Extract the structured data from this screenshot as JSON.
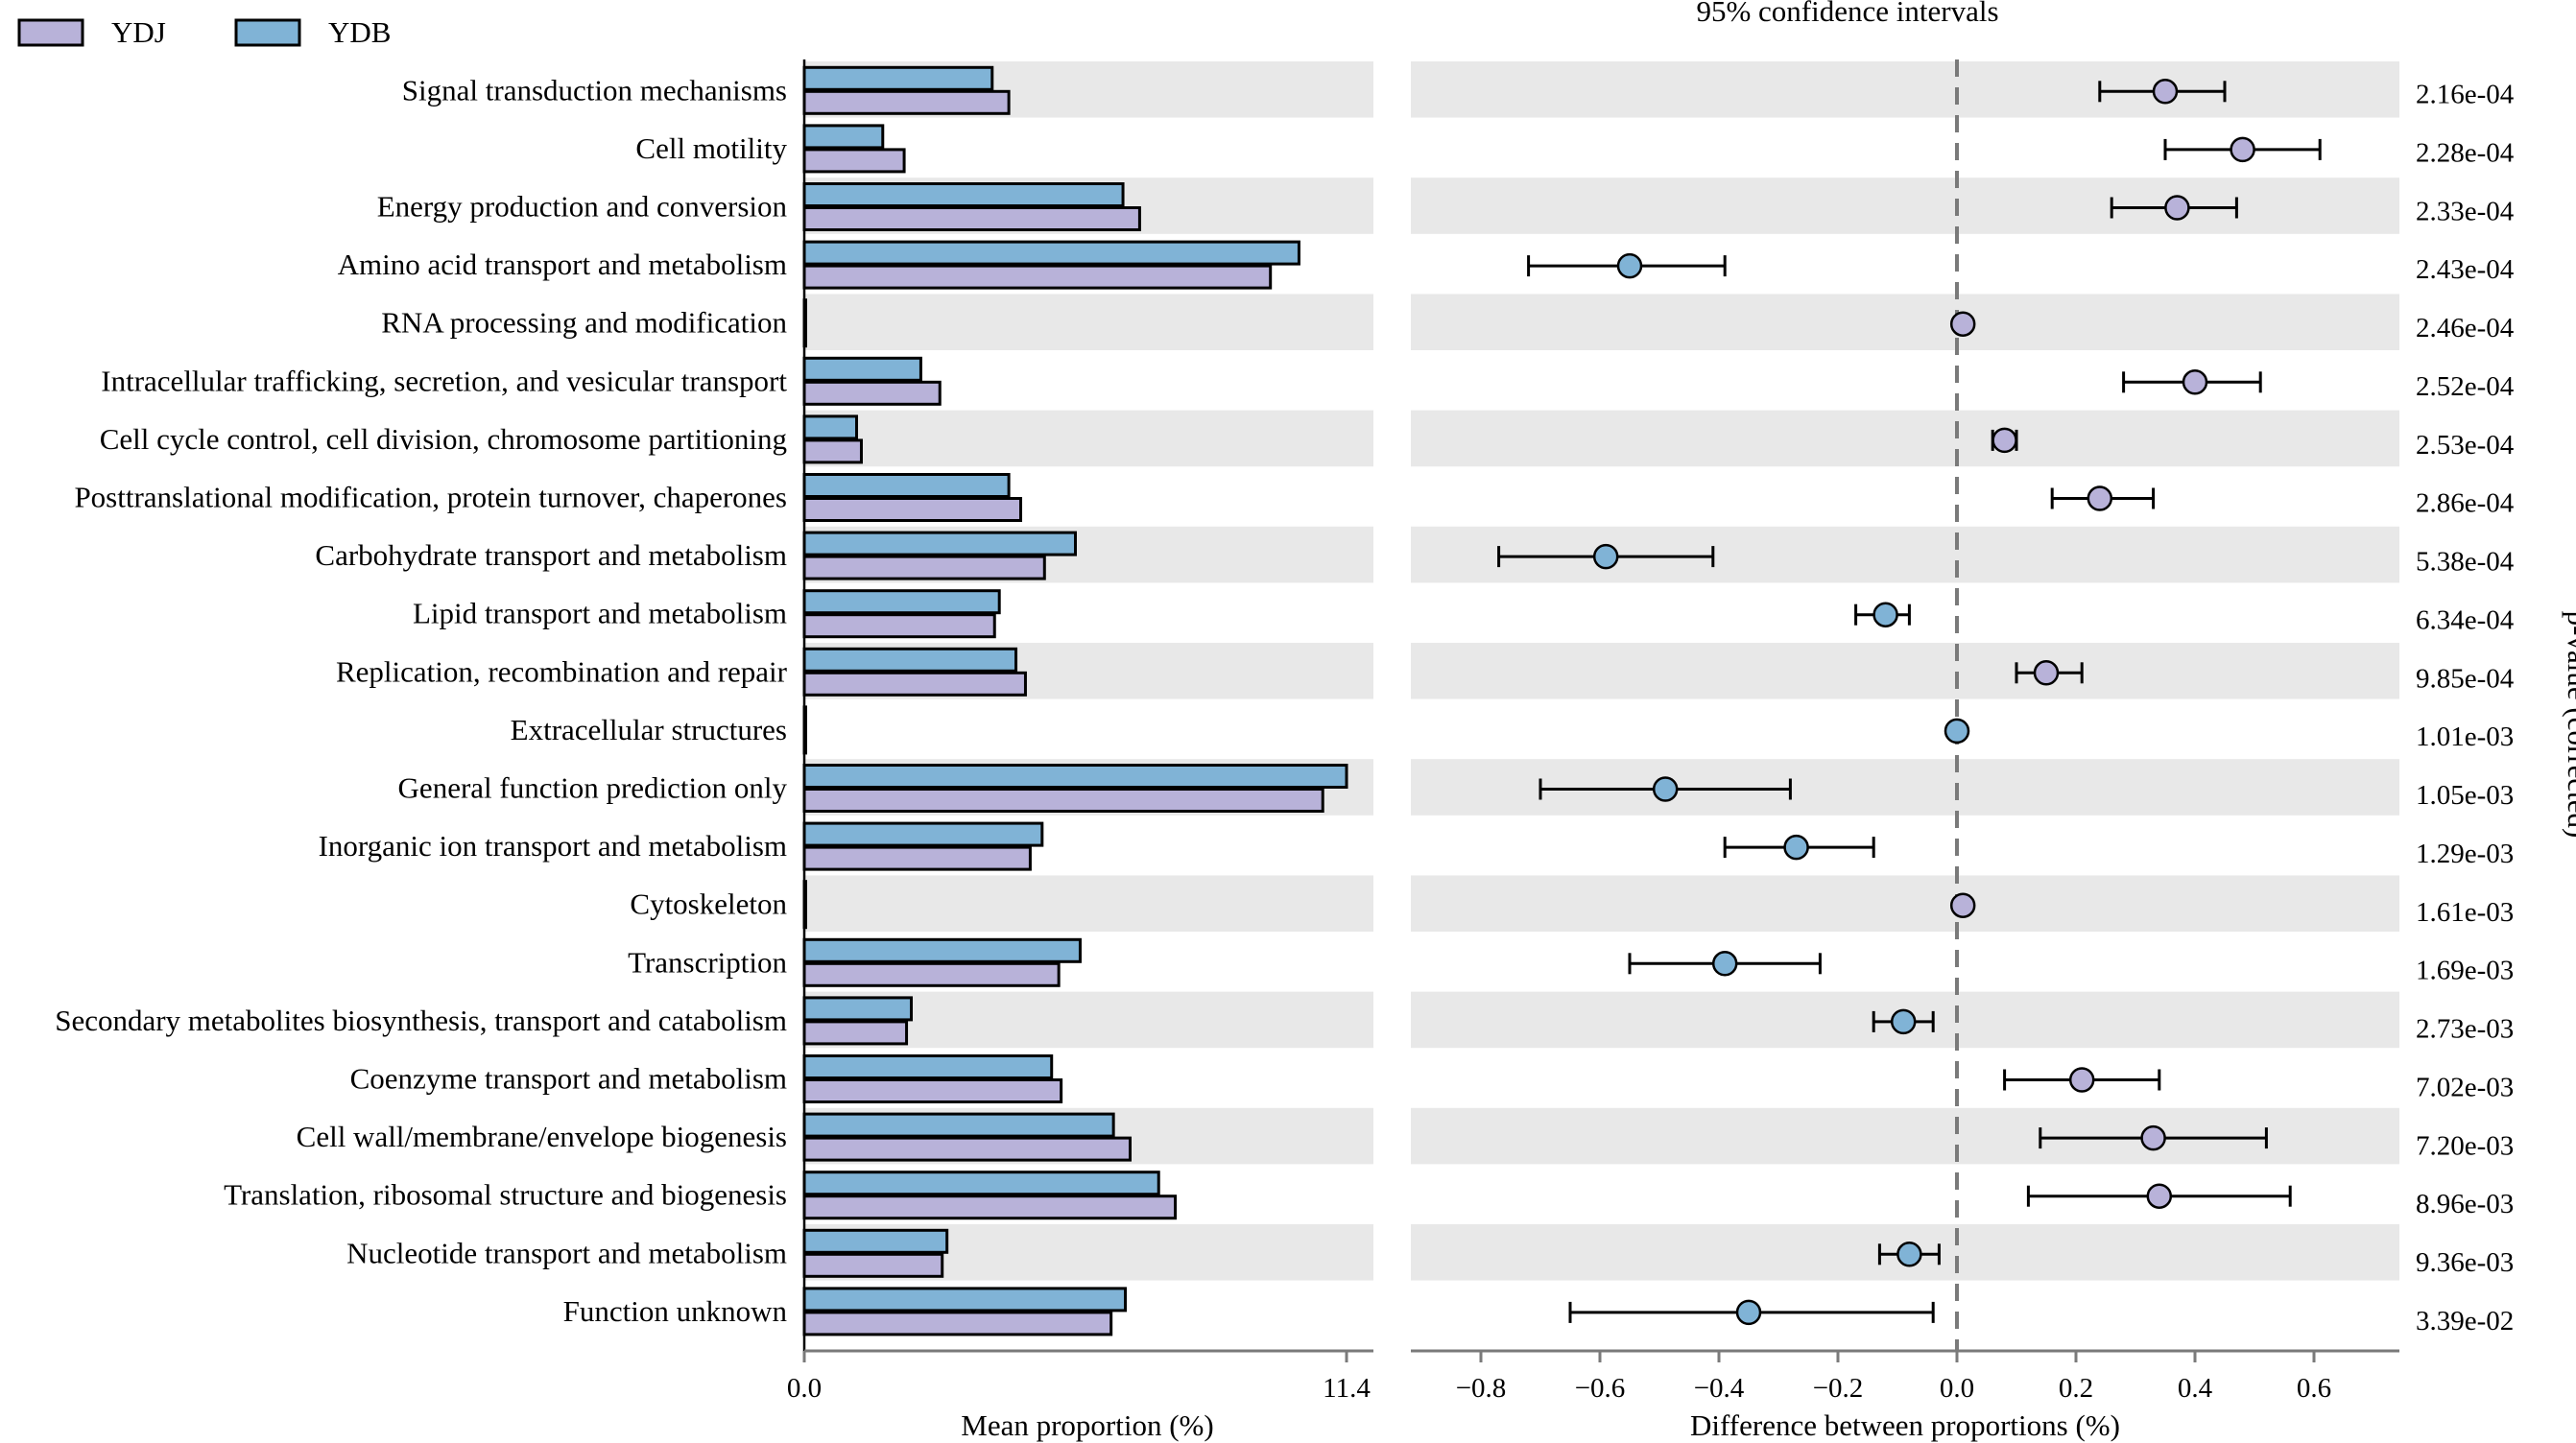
{
  "chart_data": {
    "type": "extended_error_bar",
    "legend": [
      {
        "name": "YDJ",
        "color": "#b8b2d9"
      },
      {
        "name": "YDB",
        "color": "#80b3d6"
      }
    ],
    "ci_title": "95% confidence intervals",
    "left_panel": {
      "xlabel": "Mean proportion (%)",
      "xlim": [
        0,
        11.4
      ],
      "ticks": [
        "0.0",
        "11.4"
      ]
    },
    "right_panel": {
      "xlabel": "Difference between proportions (%)",
      "xlim": [
        -0.9,
        0.7
      ],
      "ticks": [
        -0.8,
        -0.6,
        -0.4,
        -0.2,
        0.0,
        0.2,
        0.4,
        0.6
      ],
      "tick_labels": [
        "−0.8",
        "−0.6",
        "−0.4",
        "−0.2",
        "0.0",
        "0.2",
        "0.4",
        "0.6"
      ]
    },
    "pvalue_label": "p-value (corrected)",
    "categories": [
      {
        "name": "Signal transduction mechanisms",
        "ydb": 3.95,
        "ydj": 4.3,
        "diff": 0.35,
        "lo": 0.24,
        "hi": 0.45,
        "pvalue": "2.16e-04",
        "favors": "YDJ"
      },
      {
        "name": "Cell motility",
        "ydb": 1.65,
        "ydj": 2.1,
        "diff": 0.48,
        "lo": 0.35,
        "hi": 0.61,
        "pvalue": "2.28e-04",
        "favors": "YDJ"
      },
      {
        "name": "Energy production and conversion",
        "ydb": 6.7,
        "ydj": 7.05,
        "diff": 0.37,
        "lo": 0.26,
        "hi": 0.47,
        "pvalue": "2.33e-04",
        "favors": "YDJ"
      },
      {
        "name": "Amino acid transport and metabolism",
        "ydb": 10.4,
        "ydj": 9.8,
        "diff": -0.55,
        "lo": -0.72,
        "hi": -0.39,
        "pvalue": "2.43e-04",
        "favors": "YDB"
      },
      {
        "name": "RNA processing and modification",
        "ydb": 0.02,
        "ydj": 0.02,
        "diff": 0.01,
        "lo": 0.0,
        "hi": 0.02,
        "pvalue": "2.46e-04",
        "favors": "YDJ"
      },
      {
        "name": "Intracellular trafficking, secretion, and vesicular transport",
        "ydb": 2.45,
        "ydj": 2.85,
        "diff": 0.4,
        "lo": 0.28,
        "hi": 0.51,
        "pvalue": "2.52e-04",
        "favors": "YDJ"
      },
      {
        "name": "Cell cycle control, cell division, chromosome partitioning",
        "ydb": 1.1,
        "ydj": 1.2,
        "diff": 0.08,
        "lo": 0.06,
        "hi": 0.1,
        "pvalue": "2.53e-04",
        "favors": "YDJ"
      },
      {
        "name": "Posttranslational modification, protein turnover, chaperones",
        "ydb": 4.3,
        "ydj": 4.55,
        "diff": 0.24,
        "lo": 0.16,
        "hi": 0.33,
        "pvalue": "2.86e-04",
        "favors": "YDJ"
      },
      {
        "name": "Carbohydrate transport and metabolism",
        "ydb": 5.7,
        "ydj": 5.05,
        "diff": -0.59,
        "lo": -0.77,
        "hi": -0.41,
        "pvalue": "5.38e-04",
        "favors": "YDB"
      },
      {
        "name": "Lipid transport and metabolism",
        "ydb": 4.1,
        "ydj": 4.0,
        "diff": -0.12,
        "lo": -0.17,
        "hi": -0.08,
        "pvalue": "6.34e-04",
        "favors": "YDB"
      },
      {
        "name": "Replication, recombination and repair",
        "ydb": 4.45,
        "ydj": 4.65,
        "diff": 0.15,
        "lo": 0.1,
        "hi": 0.21,
        "pvalue": "9.85e-04",
        "favors": "YDJ"
      },
      {
        "name": "Extracellular structures",
        "ydb": 0.03,
        "ydj": 0.02,
        "diff": 0.0,
        "lo": -0.005,
        "hi": 0.005,
        "pvalue": "1.01e-03",
        "favors": "YDB"
      },
      {
        "name": "General function prediction only",
        "ydb": 11.4,
        "ydj": 10.9,
        "diff": -0.49,
        "lo": -0.7,
        "hi": -0.28,
        "pvalue": "1.05e-03",
        "favors": "YDB"
      },
      {
        "name": "Inorganic ion transport and metabolism",
        "ydb": 5.0,
        "ydj": 4.75,
        "diff": -0.27,
        "lo": -0.39,
        "hi": -0.14,
        "pvalue": "1.29e-03",
        "favors": "YDB"
      },
      {
        "name": "Cytoskeleton",
        "ydb": 0.02,
        "ydj": 0.03,
        "diff": 0.01,
        "lo": 0.0,
        "hi": 0.02,
        "pvalue": "1.61e-03",
        "favors": "YDJ"
      },
      {
        "name": "Transcription",
        "ydb": 5.8,
        "ydj": 5.35,
        "diff": -0.39,
        "lo": -0.55,
        "hi": -0.23,
        "pvalue": "1.69e-03",
        "favors": "YDB"
      },
      {
        "name": "Secondary metabolites biosynthesis, transport and catabolism",
        "ydb": 2.25,
        "ydj": 2.15,
        "diff": -0.09,
        "lo": -0.14,
        "hi": -0.04,
        "pvalue": "2.73e-03",
        "favors": "YDB"
      },
      {
        "name": "Coenzyme transport and metabolism",
        "ydb": 5.2,
        "ydj": 5.4,
        "diff": 0.21,
        "lo": 0.08,
        "hi": 0.34,
        "pvalue": "7.02e-03",
        "favors": "YDJ"
      },
      {
        "name": "Cell wall/membrane/envelope biogenesis",
        "ydb": 6.5,
        "ydj": 6.85,
        "diff": 0.33,
        "lo": 0.14,
        "hi": 0.52,
        "pvalue": "7.20e-03",
        "favors": "YDJ"
      },
      {
        "name": "Translation, ribosomal structure and biogenesis",
        "ydb": 7.45,
        "ydj": 7.8,
        "diff": 0.34,
        "lo": 0.12,
        "hi": 0.56,
        "pvalue": "8.96e-03",
        "favors": "YDJ"
      },
      {
        "name": "Nucleotide transport and metabolism",
        "ydb": 3.0,
        "ydj": 2.9,
        "diff": -0.08,
        "lo": -0.13,
        "hi": -0.03,
        "pvalue": "9.36e-03",
        "favors": "YDB"
      },
      {
        "name": "Function unknown",
        "ydb": 6.75,
        "ydj": 6.45,
        "diff": -0.35,
        "lo": -0.65,
        "hi": -0.04,
        "pvalue": "3.39e-02",
        "favors": "YDB"
      }
    ]
  }
}
